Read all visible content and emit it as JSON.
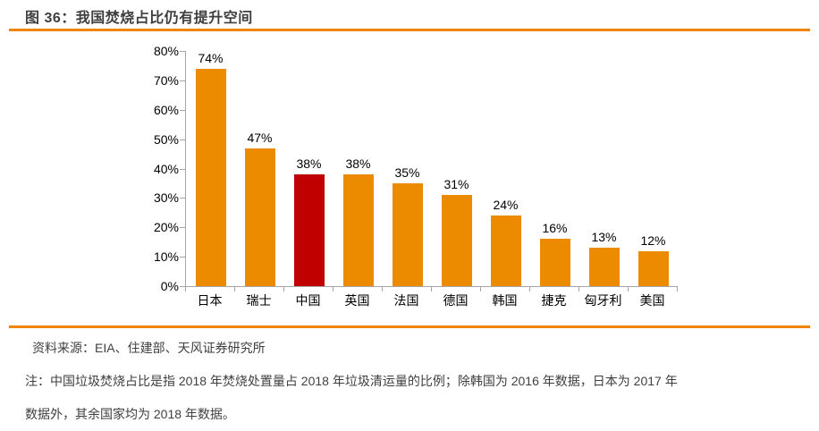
{
  "figure": {
    "title": "图 36：我国焚烧占比仍有提升空间",
    "source": "资料来源：EIA、住建部、天风证券研究所",
    "note_line1": "注：中国垃圾焚烧占比是指 2018 年焚烧处置量占 2018 年垃圾清运量的比例；除韩国为 2016 年数据，日本为 2017 年",
    "note_line2": "数据外，其余国家均为 2018 年数据。"
  },
  "colors": {
    "bar_orange": "#ed8b00",
    "bar_highlight_red": "#c00000",
    "rule_orange": "#f08300",
    "axis_gray": "#a6a6a6",
    "title_text": "#3f3f3f",
    "footer_text": "#3f3f3f",
    "label_text": "#000000"
  },
  "chart_data": {
    "type": "bar",
    "title": "图 36：我国焚烧占比仍有提升空间",
    "categories": [
      "日本",
      "瑞士",
      "中国",
      "英国",
      "法国",
      "德国",
      "韩国",
      "捷克",
      "匈牙利",
      "美国"
    ],
    "values": [
      74,
      47,
      38,
      38,
      35,
      31,
      24,
      16,
      13,
      12
    ],
    "data_labels": [
      "74%",
      "47%",
      "38%",
      "38%",
      "35%",
      "31%",
      "24%",
      "16%",
      "13%",
      "12%"
    ],
    "highlight_category": "中国",
    "highlight_index": 2,
    "xlabel": "",
    "ylabel": "",
    "ylim": [
      0,
      80
    ],
    "ytick_interval": 10,
    "ytick_labels": [
      "0%",
      "10%",
      "20%",
      "30%",
      "40%",
      "50%",
      "60%",
      "70%",
      "80%"
    ],
    "grid": false,
    "legend": "none"
  }
}
